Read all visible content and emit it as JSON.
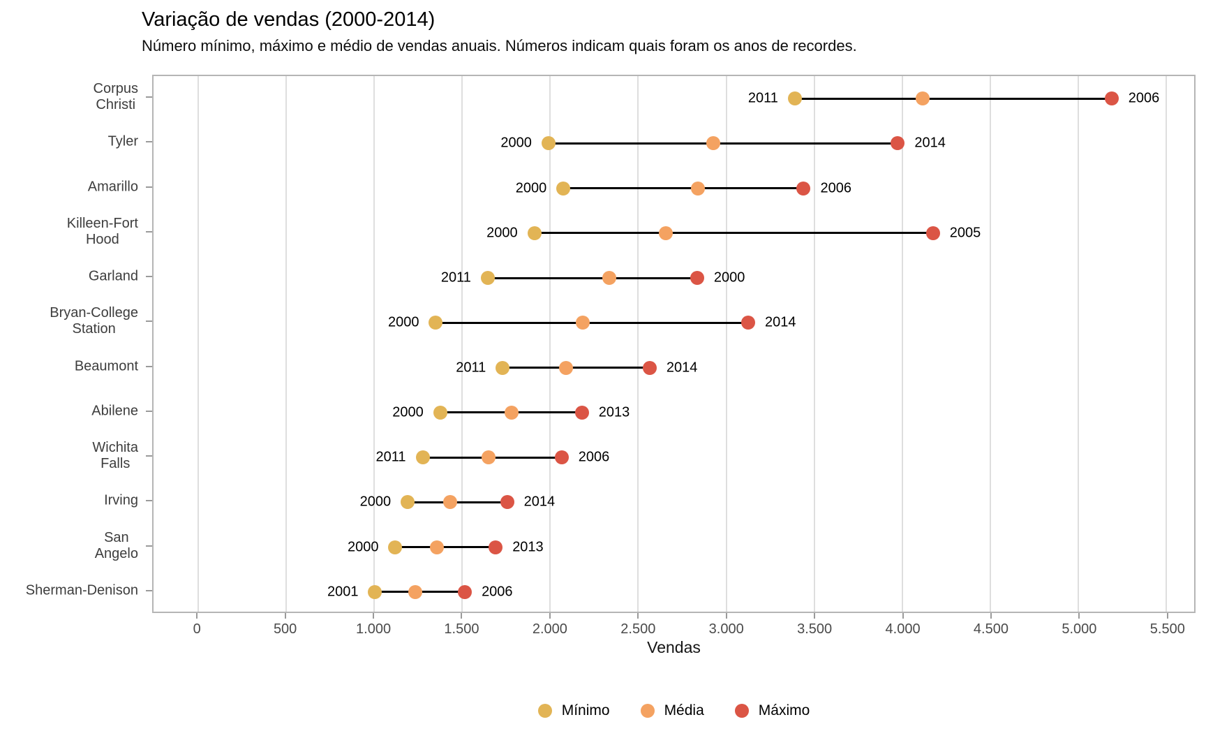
{
  "title": "Variação de vendas (2000-2014)",
  "subtitle": "Número mínimo, máximo e médio de vendas anuais. Números indicam quais foram os anos de recordes.",
  "chart_data": {
    "type": "dumbbell",
    "title": "Variação de vendas (2000-2014)",
    "subtitle": "Número mínimo, máximo e médio de vendas anuais. Números indicam quais foram os anos de recordes.",
    "xlabel": "Vendas",
    "ylabel": "",
    "grid": "vertical-only",
    "legend_position": "bottom-center",
    "x_domain": [
      -254,
      5659
    ],
    "x_ticks": [
      {
        "value": 0,
        "label": "0"
      },
      {
        "value": 500,
        "label": "500"
      },
      {
        "value": 1000,
        "label": "1.000"
      },
      {
        "value": 1500,
        "label": "1.500"
      },
      {
        "value": 2000,
        "label": "2.000"
      },
      {
        "value": 2500,
        "label": "2.500"
      },
      {
        "value": 3000,
        "label": "3.000"
      },
      {
        "value": 3500,
        "label": "3.500"
      },
      {
        "value": 4000,
        "label": "4.000"
      },
      {
        "value": 4500,
        "label": "4.500"
      },
      {
        "value": 5000,
        "label": "5.000"
      },
      {
        "value": 5500,
        "label": "5.500"
      }
    ],
    "legend": [
      {
        "name": "Mínimo",
        "color": "#E2B455"
      },
      {
        "name": "Média",
        "color": "#F4A261"
      },
      {
        "name": "Máximo",
        "color": "#DB5545"
      }
    ],
    "colors": {
      "min": "#E2B455",
      "mean": "#F4A261",
      "max": "#DB5545",
      "connector": "#000000"
    },
    "rows": [
      {
        "city": "Corpus Christi",
        "label_lines": [
          "Corpus",
          "Christi"
        ],
        "min": 3390,
        "min_year": "2011",
        "mean": 4115,
        "max": 5190,
        "max_year": "2006"
      },
      {
        "city": "Tyler",
        "label_lines": [
          "Tyler"
        ],
        "min": 1990,
        "min_year": "2000",
        "mean": 2925,
        "max": 3975,
        "max_year": "2014"
      },
      {
        "city": "Amarillo",
        "label_lines": [
          "Amarillo"
        ],
        "min": 2075,
        "min_year": "2000",
        "mean": 2840,
        "max": 3440,
        "max_year": "2006"
      },
      {
        "city": "Killeen-Fort Hood",
        "label_lines": [
          "Killeen-Fort",
          "Hood"
        ],
        "min": 1910,
        "min_year": "2000",
        "mean": 2655,
        "max": 4175,
        "max_year": "2005"
      },
      {
        "city": "Garland",
        "label_lines": [
          "Garland"
        ],
        "min": 1645,
        "min_year": "2011",
        "mean": 2335,
        "max": 2835,
        "max_year": "2000"
      },
      {
        "city": "Bryan-College Station",
        "label_lines": [
          "Bryan-College",
          "Station"
        ],
        "min": 1350,
        "min_year": "2000",
        "mean": 2185,
        "max": 3125,
        "max_year": "2014"
      },
      {
        "city": "Beaumont",
        "label_lines": [
          "Beaumont"
        ],
        "min": 1730,
        "min_year": "2011",
        "mean": 2090,
        "max": 2565,
        "max_year": "2014"
      },
      {
        "city": "Abilene",
        "label_lines": [
          "Abilene"
        ],
        "min": 1375,
        "min_year": "2000",
        "mean": 1780,
        "max": 2180,
        "max_year": "2013"
      },
      {
        "city": "Wichita Falls",
        "label_lines": [
          "Wichita",
          "Falls"
        ],
        "min": 1275,
        "min_year": "2011",
        "mean": 1650,
        "max": 2065,
        "max_year": "2006"
      },
      {
        "city": "Irving",
        "label_lines": [
          "Irving"
        ],
        "min": 1190,
        "min_year": "2000",
        "mean": 1430,
        "max": 1755,
        "max_year": "2014"
      },
      {
        "city": "San Angelo",
        "label_lines": [
          "San",
          "Angelo"
        ],
        "min": 1120,
        "min_year": "2000",
        "mean": 1355,
        "max": 1690,
        "max_year": "2013"
      },
      {
        "city": "Sherman-Denison",
        "label_lines": [
          "Sherman-Denison"
        ],
        "min": 1005,
        "min_year": "2001",
        "mean": 1235,
        "max": 1515,
        "max_year": "2006"
      }
    ]
  }
}
